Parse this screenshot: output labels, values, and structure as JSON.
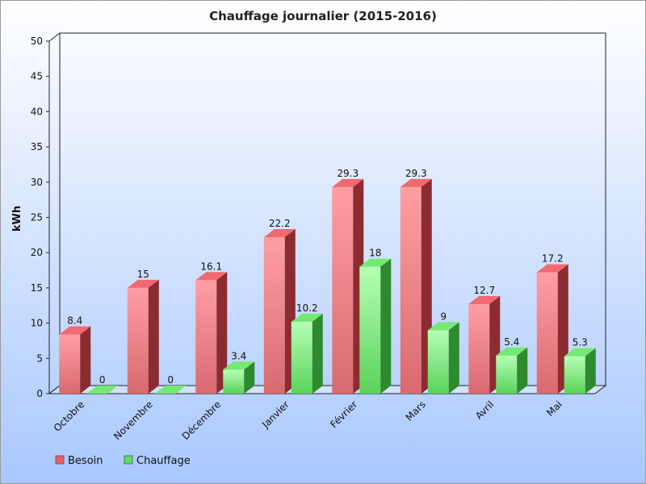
{
  "chart_data": {
    "type": "bar",
    "title": "Chauffage journalier (2015-2016)",
    "xlabel": "",
    "ylabel": "kWh",
    "ylim": [
      0,
      50
    ],
    "yticks": [
      0,
      5,
      10,
      15,
      20,
      25,
      30,
      35,
      40,
      45,
      50
    ],
    "categories": [
      "Octobre",
      "Novembre",
      "Décembre",
      "Janvier",
      "Février",
      "Mars",
      "Avril",
      "Mai"
    ],
    "series": [
      {
        "name": "Besoin",
        "color": "#ee5c63",
        "values": [
          8.4,
          15,
          16.1,
          22.2,
          29.3,
          29.3,
          12.7,
          17.2
        ]
      },
      {
        "name": "Chauffage",
        "color": "#5ce05c",
        "values": [
          0,
          0,
          3.4,
          10.2,
          18,
          9,
          5.4,
          5.3
        ]
      }
    ],
    "data_labels": true,
    "grid": false,
    "legend_position": "bottom-left",
    "background": "gradient-white-to-blue"
  }
}
